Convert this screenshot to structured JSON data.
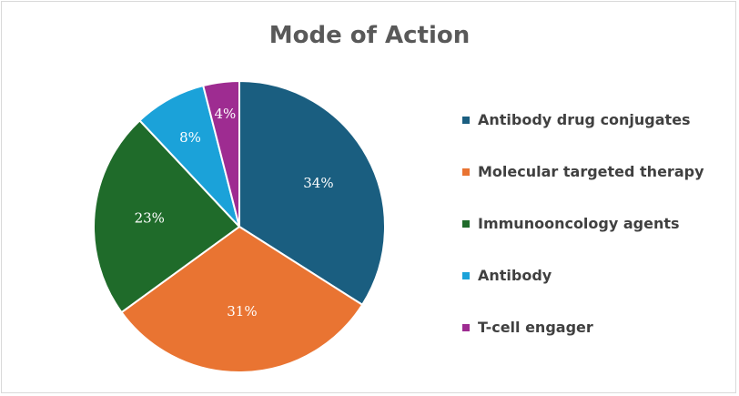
{
  "chart_data": {
    "type": "pie",
    "title": "Mode of Action",
    "categories": [
      "Antibody drug conjugates",
      "Molecular targeted therapy",
      "Immunooncology agents",
      "Antibody",
      "T-cell engager"
    ],
    "values": [
      34,
      31,
      23,
      8,
      4
    ],
    "labels": [
      "34%",
      "31%",
      "23%",
      "8%",
      "4%"
    ],
    "colors": [
      "#1a5e80",
      "#e97432",
      "#1f6b2a",
      "#1ba2d9",
      "#9e2c91"
    ],
    "legend_position": "right",
    "start_angle": "12 o'clock, clockwise"
  }
}
